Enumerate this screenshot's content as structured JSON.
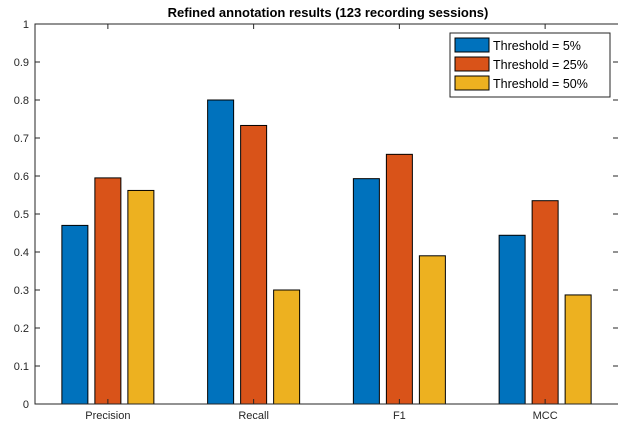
{
  "chart_data": {
    "type": "bar",
    "title": "Refined annotation results (123 recording sessions)",
    "xlabel": "",
    "ylabel": "",
    "categories": [
      "Precision",
      "Recall",
      "F1",
      "MCC"
    ],
    "series": [
      {
        "name": "Threshold = 5%",
        "color": "#0072BD",
        "values": [
          0.47,
          0.8,
          0.593,
          0.444
        ]
      },
      {
        "name": "Threshold = 25%",
        "color": "#D95319",
        "values": [
          0.595,
          0.733,
          0.657,
          0.535
        ]
      },
      {
        "name": "Threshold = 50%",
        "color": "#EDB120",
        "values": [
          0.562,
          0.3,
          0.39,
          0.287
        ]
      }
    ],
    "ylim": [
      0,
      1
    ],
    "yticks": [
      "0",
      "0.1",
      "0.2",
      "0.3",
      "0.4",
      "0.5",
      "0.6",
      "0.7",
      "0.8",
      "0.9",
      "1"
    ],
    "grid": false,
    "legend_position": "top-right"
  }
}
